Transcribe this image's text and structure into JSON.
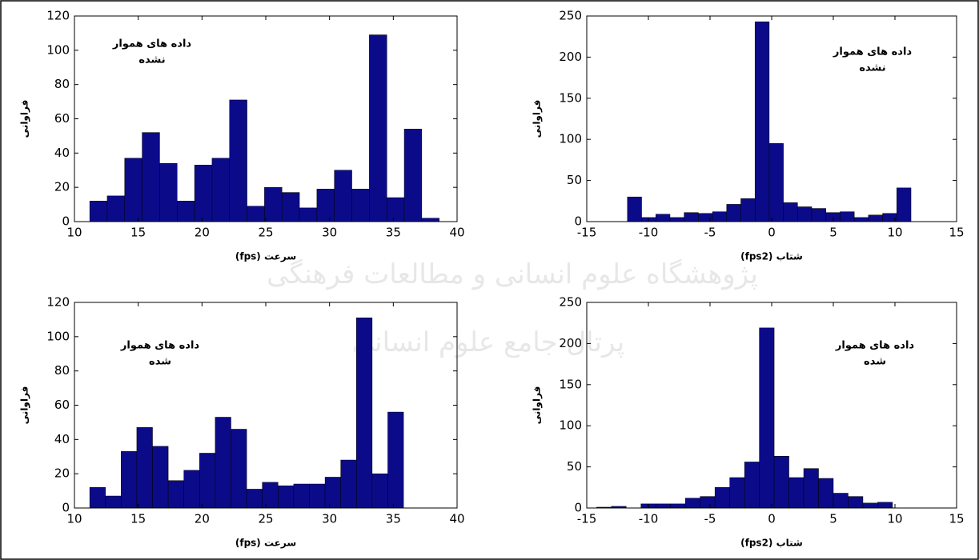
{
  "chart_data": [
    {
      "type": "histogram",
      "annotation": [
        "داده های هموار",
        "نشده"
      ],
      "xlabel": "سرعت  (fps)",
      "ylabel": "فراوانی",
      "color": "#0b0b8a",
      "bins": [
        11.2,
        12.57,
        13.94,
        15.31,
        16.68,
        18.05,
        19.42,
        20.79,
        22.16,
        23.53,
        24.9,
        26.27,
        27.64,
        29.01,
        30.38,
        31.75,
        33.12,
        34.49,
        35.86,
        37.23,
        38.6
      ],
      "values": [
        12,
        15,
        37,
        52,
        34,
        12,
        33,
        37,
        71,
        9,
        20,
        17,
        8,
        19,
        30,
        19,
        109,
        14,
        54,
        2
      ],
      "xlim": [
        10,
        40
      ],
      "xticks": [
        10,
        15,
        20,
        25,
        30,
        35,
        40
      ],
      "ylim": [
        0,
        120
      ],
      "yticks": [
        0,
        20,
        40,
        60,
        80,
        100,
        120
      ]
    },
    {
      "type": "histogram",
      "annotation": [
        "داده های هموار",
        "نشده"
      ],
      "xlabel": "شتاب  (fps2)",
      "ylabel": "فراوانی",
      "color": "#0b0b8a",
      "bins": [
        -11.7,
        -10.55,
        -9.4,
        -8.25,
        -7.1,
        -5.95,
        -4.8,
        -3.65,
        -2.5,
        -1.35,
        -0.2,
        0.95,
        2.1,
        3.25,
        4.4,
        5.55,
        6.7,
        7.85,
        9.0,
        10.15,
        11.3
      ],
      "values": [
        30,
        5,
        9,
        5,
        11,
        10,
        12,
        21,
        28,
        243,
        95,
        23,
        18,
        16,
        11,
        12,
        5,
        8,
        10,
        41
      ],
      "xlim": [
        -15,
        15
      ],
      "xticks": [
        -15,
        -10,
        -5,
        0,
        5,
        10,
        15
      ],
      "ylim": [
        0,
        250
      ],
      "yticks": [
        0,
        50,
        100,
        150,
        200,
        250
      ]
    },
    {
      "type": "histogram",
      "annotation": [
        "داده های هموار",
        "شده"
      ],
      "xlabel": "سرعت  (fps)",
      "ylabel": "فراوانی",
      "color": "#0b0b8a",
      "bins": [
        11.2,
        12.43,
        13.66,
        14.89,
        16.12,
        17.35,
        18.58,
        19.81,
        21.04,
        22.27,
        23.5,
        24.73,
        25.96,
        27.19,
        28.42,
        29.65,
        30.88,
        32.11,
        33.34,
        34.57,
        35.8
      ],
      "values": [
        12,
        7,
        33,
        47,
        36,
        16,
        22,
        32,
        53,
        46,
        11,
        15,
        13,
        14,
        14,
        18,
        28,
        111,
        20,
        56
      ],
      "xlim": [
        10,
        40
      ],
      "xticks": [
        10,
        15,
        20,
        25,
        30,
        35,
        40
      ],
      "ylim": [
        0,
        120
      ],
      "yticks": [
        0,
        20,
        40,
        60,
        80,
        100,
        120
      ]
    },
    {
      "type": "histogram",
      "annotation": [
        "داده های هموار",
        "شده"
      ],
      "xlabel": "شتاب  (fps2)",
      "ylabel": "فراوانی",
      "color": "#0b0b8a",
      "bins": [
        -14.2,
        -13.0,
        -11.8,
        -10.6,
        -9.4,
        -8.2,
        -7.0,
        -5.8,
        -4.6,
        -3.4,
        -2.2,
        -1.0,
        0.2,
        1.4,
        2.6,
        3.8,
        5.0,
        6.2,
        7.4,
        8.6,
        9.8
      ],
      "values": [
        1,
        2,
        0,
        5,
        5,
        5,
        12,
        14,
        25,
        37,
        56,
        219,
        63,
        37,
        48,
        36,
        18,
        14,
        6,
        7
      ],
      "xlim": [
        -15,
        15
      ],
      "xticks": [
        -15,
        -10,
        -5,
        0,
        5,
        10,
        15
      ],
      "ylim": [
        0,
        250
      ],
      "yticks": [
        0,
        50,
        100,
        150,
        200,
        250
      ]
    }
  ],
  "watermark": [
    "پژوهشگاه علوم انسانی و مطالعات فرهنگی",
    "پرتال جامع علوم انسانی"
  ]
}
